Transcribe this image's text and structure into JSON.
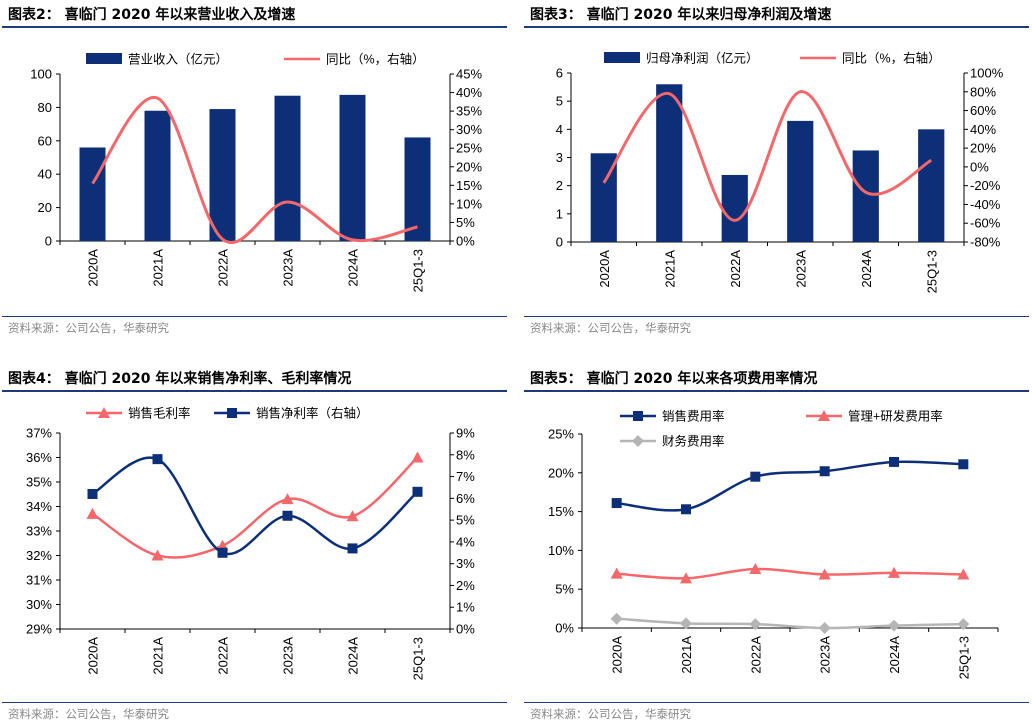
{
  "panels": [
    {
      "title": "图表2：  喜临门 2020 年以来营业收入及增速",
      "source": "资料来源：公司公告，华泰研究"
    },
    {
      "title": "图表3：  喜临门 2020 年以来归母净利润及增速",
      "source": "资料来源：公司公告，华泰研究"
    },
    {
      "title": "图表4：  喜临门 2020 年以来销售净利率、毛利率情况",
      "source": "资料来源：公司公告，华泰研究"
    },
    {
      "title": "图表5：  喜临门 2020 年以来各项费用率情况",
      "source": "资料来源：公司公告，华泰研究"
    }
  ],
  "colors": {
    "navy": "#0d2f78",
    "salmon": "#f4676a",
    "gray": "#b5b5b5",
    "rule": "#1f3a7a"
  },
  "chart_data": [
    {
      "type": "bar+line",
      "categories": [
        "2020A",
        "2021A",
        "2022A",
        "2023A",
        "2024A",
        "25Q1-3"
      ],
      "bar": {
        "name": "营业收入（亿元）",
        "values": [
          56,
          78,
          79,
          87,
          87.5,
          62
        ]
      },
      "line": {
        "name": "同比（%，右轴）",
        "values": [
          15.5,
          38.5,
          0.5,
          10.5,
          0.3,
          3.8
        ]
      },
      "y_left": {
        "min": 0,
        "max": 100,
        "step": 20,
        "ticks": [
          "0",
          "20",
          "40",
          "60",
          "80",
          "100"
        ]
      },
      "y_right": {
        "min": 0,
        "max": 45,
        "step": 5,
        "ticks": [
          "0%",
          "5%",
          "10%",
          "15%",
          "20%",
          "25%",
          "30%",
          "35%",
          "40%",
          "45%"
        ]
      }
    },
    {
      "type": "bar+line",
      "categories": [
        "2020A",
        "2021A",
        "2022A",
        "2023A",
        "2024A",
        "25Q1-3"
      ],
      "bar": {
        "name": "归母净利润（亿元）",
        "values": [
          3.15,
          5.6,
          2.38,
          4.3,
          3.25,
          4.0
        ]
      },
      "line": {
        "name": "同比（%，右轴）",
        "values": [
          -17,
          78,
          -57,
          80,
          -27,
          7
        ]
      },
      "y_left": {
        "min": 0,
        "max": 6,
        "step": 1,
        "ticks": [
          "0",
          "1",
          "2",
          "3",
          "4",
          "5",
          "6"
        ]
      },
      "y_right": {
        "min": -80,
        "max": 100,
        "step": 20,
        "ticks": [
          "-80%",
          "-60%",
          "-40%",
          "-20%",
          "0%",
          "20%",
          "40%",
          "60%",
          "80%",
          "100%"
        ]
      }
    },
    {
      "type": "line",
      "categories": [
        "2020A",
        "2021A",
        "2022A",
        "2023A",
        "2024A",
        "25Q1-3"
      ],
      "series": [
        {
          "name": "销售毛利率",
          "axis": "left",
          "marker": "triangle",
          "values": [
            33.7,
            32.0,
            32.4,
            34.3,
            33.6,
            36.0
          ]
        },
        {
          "name": "销售净利率（右轴）",
          "axis": "right",
          "marker": "square",
          "values": [
            6.2,
            7.8,
            3.5,
            5.2,
            3.7,
            6.3
          ]
        }
      ],
      "y_left": {
        "min": 29,
        "max": 37,
        "step": 1,
        "ticks": [
          "29%",
          "30%",
          "31%",
          "32%",
          "33%",
          "34%",
          "35%",
          "36%",
          "37%"
        ]
      },
      "y_right": {
        "min": 0,
        "max": 9,
        "step": 1,
        "ticks": [
          "0%",
          "1%",
          "2%",
          "3%",
          "4%",
          "5%",
          "6%",
          "7%",
          "8%",
          "9%"
        ]
      }
    },
    {
      "type": "line",
      "categories": [
        "2020A",
        "2021A",
        "2022A",
        "2023A",
        "2024A",
        "25Q1-3"
      ],
      "series": [
        {
          "name": "销售费用率",
          "marker": "square",
          "values": [
            16.1,
            15.3,
            19.5,
            20.2,
            21.4,
            21.1
          ]
        },
        {
          "name": "管理+研发费用率",
          "marker": "triangle",
          "values": [
            7.0,
            6.4,
            7.6,
            6.9,
            7.1,
            6.9
          ]
        },
        {
          "name": "财务费用率",
          "marker": "diamond",
          "values": [
            1.2,
            0.6,
            0.5,
            0.0,
            0.3,
            0.5
          ]
        }
      ],
      "y_left": {
        "min": 0,
        "max": 25,
        "step": 5,
        "ticks": [
          "0%",
          "5%",
          "10%",
          "15%",
          "20%",
          "25%"
        ]
      }
    }
  ]
}
